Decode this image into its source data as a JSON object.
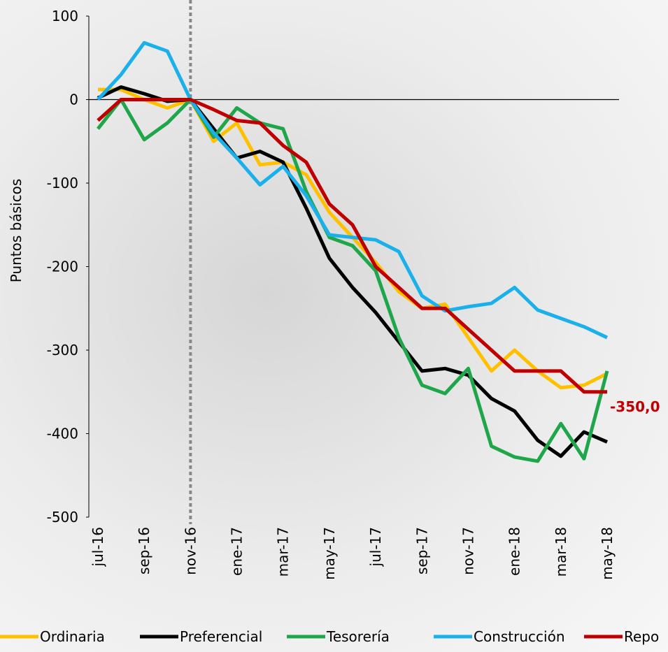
{
  "chart_data": {
    "type": "line",
    "y_label": "Puntos básicos",
    "categories": [
      "jul-16",
      null,
      "sep-16",
      null,
      "nov-16",
      null,
      "ene-17",
      null,
      "mar-17",
      null,
      "may-17",
      null,
      "jul-17",
      null,
      "sep-17",
      null,
      "nov-17",
      null,
      "ene-18",
      null,
      "mar-18",
      null,
      "may-18"
    ],
    "ylim": [
      -500,
      100
    ],
    "yticks": [
      -500,
      -400,
      -300,
      -200,
      -100,
      0,
      100
    ],
    "reference_category": "nov-16",
    "legend": "bottom",
    "series": [
      {
        "name": "Ordinaria",
        "color": "#ffc000",
        "values": [
          12,
          12,
          0,
          -10,
          0,
          -50,
          -28,
          -78,
          -75,
          -90,
          -135,
          -165,
          -195,
          -230,
          -250,
          -245,
          -285,
          -325,
          -300,
          -325,
          -345,
          -342,
          -328
        ]
      },
      {
        "name": "Preferencial",
        "color": "#000000",
        "values": [
          2,
          15,
          7,
          -2,
          0,
          -35,
          -70,
          -62,
          -75,
          -130,
          -190,
          -225,
          -255,
          -290,
          -325,
          -322,
          -330,
          -358,
          -373,
          -408,
          -427,
          -398,
          -410
        ]
      },
      {
        "name": "Tesorería",
        "color": "#1fa64a",
        "values": [
          -35,
          0,
          -48,
          -28,
          0,
          -45,
          -10,
          -28,
          -35,
          -110,
          -165,
          -175,
          -205,
          -285,
          -342,
          -352,
          -322,
          -415,
          -428,
          -433,
          -388,
          -430,
          -325
        ]
      },
      {
        "name": "Construcción",
        "color": "#1ab0ea",
        "values": [
          0,
          30,
          68,
          58,
          0,
          -40,
          -70,
          -102,
          -80,
          -115,
          -162,
          -165,
          -168,
          -182,
          -235,
          -253,
          -248,
          -244,
          -225,
          -252,
          -262,
          -272,
          -285
        ]
      },
      {
        "name": "Repo",
        "color": "#c00000",
        "values": [
          -25,
          0,
          0,
          0,
          0,
          -12,
          -25,
          -28,
          -55,
          -75,
          -125,
          -150,
          -200,
          -225,
          -250,
          -250,
          -275,
          -300,
          -325,
          -325,
          -325,
          -350,
          -350
        ],
        "value_labels": [
          null,
          null,
          null,
          null,
          null,
          null,
          null,
          null,
          null,
          null,
          null,
          null,
          null,
          null,
          null,
          null,
          null,
          null,
          null,
          null,
          null,
          null,
          "-350,0"
        ]
      }
    ]
  }
}
